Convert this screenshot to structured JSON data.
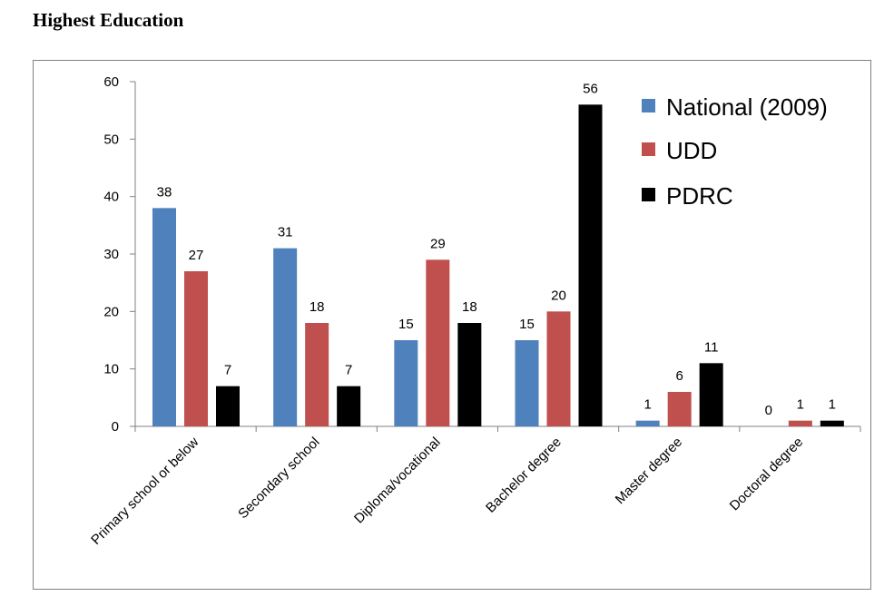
{
  "chart_data": {
    "type": "bar",
    "title": "Highest Education",
    "categories": [
      "Primary school or below",
      "Secondary school",
      "Diploma/vocational",
      "Bachelor degree",
      "Master degree",
      "Doctoral degree"
    ],
    "series": [
      {
        "name": "National (2009)",
        "color": "#4f81bd",
        "values": [
          38,
          31,
          15,
          15,
          1,
          0
        ]
      },
      {
        "name": "UDD",
        "color": "#c0504d",
        "values": [
          27,
          18,
          29,
          20,
          6,
          1
        ]
      },
      {
        "name": "PDRC",
        "color": "#000000",
        "values": [
          7,
          7,
          18,
          56,
          11,
          1
        ]
      }
    ],
    "ylim": [
      0,
      60
    ],
    "yticks": [
      0,
      10,
      20,
      30,
      40,
      50,
      60
    ],
    "xlabel": "",
    "ylabel": "",
    "legend": "top-right",
    "grid": false
  }
}
